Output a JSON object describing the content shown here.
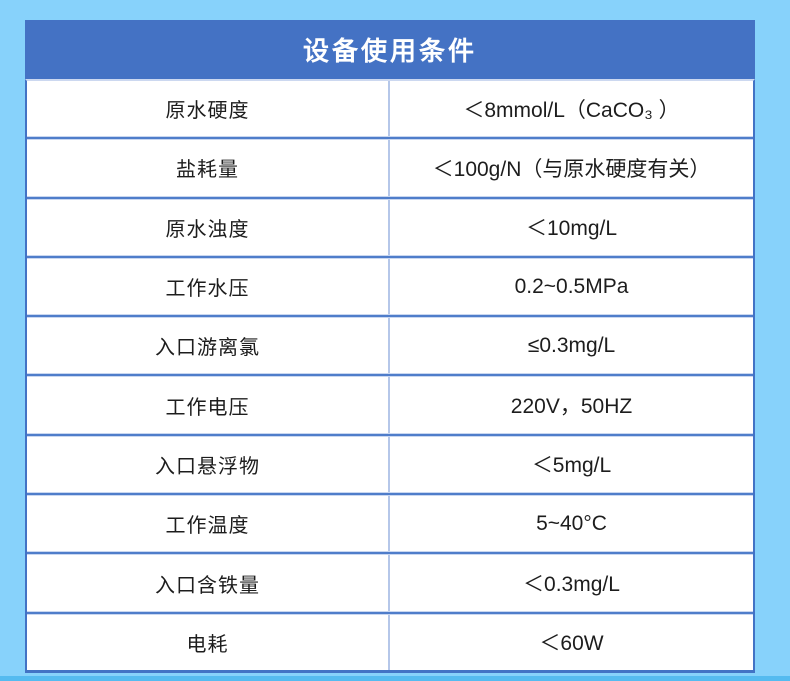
{
  "page": {
    "background_color": "#87d2fb",
    "bottom_strip_color": "#55bbf0"
  },
  "table": {
    "title": "设备使用条件",
    "header_color": "#4472c4",
    "border_color": "#4273c5",
    "divider_color": "#4f7dca",
    "rows": [
      {
        "label": "原水硬度",
        "value": "＜8mmol/L（CaCO₃ ）"
      },
      {
        "label": "盐耗量",
        "value": "＜100g/N（与原水硬度有关）"
      },
      {
        "label": "原水浊度",
        "value": "＜10mg/L"
      },
      {
        "label": "工作水压",
        "value": "0.2~0.5MPa"
      },
      {
        "label": "入口游离氯",
        "value": "≤0.3mg/L"
      },
      {
        "label": "工作电压",
        "value": "220V，50HZ"
      },
      {
        "label": "入口悬浮物",
        "value": "＜5mg/L"
      },
      {
        "label": "工作温度",
        "value": "5~40°C"
      },
      {
        "label": "入口含铁量",
        "value": "＜0.3mg/L"
      },
      {
        "label": "电耗",
        "value": "＜60W"
      }
    ]
  }
}
